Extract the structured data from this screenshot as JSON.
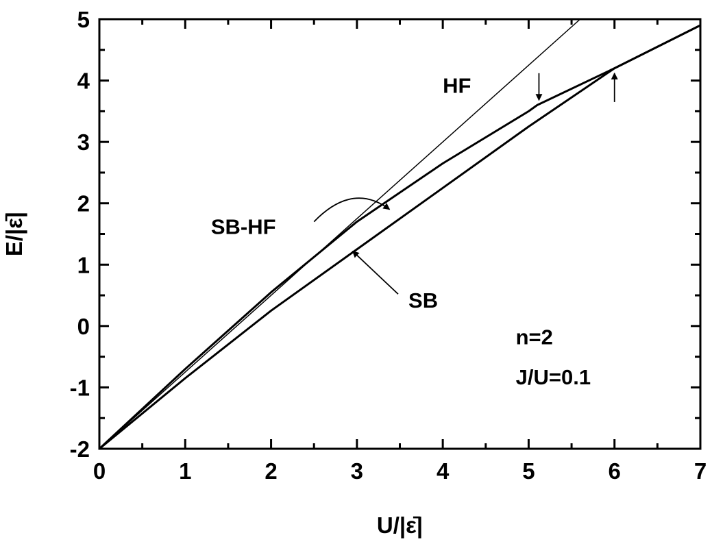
{
  "chart_data": {
    "type": "line",
    "xlabel": "U/|ε̄|",
    "ylabel": "E/|ε̄|",
    "xlim": [
      0,
      7
    ],
    "ylim": [
      -2,
      5
    ],
    "x_ticks": [
      "0",
      "1",
      "2",
      "3",
      "4",
      "5",
      "6",
      "7"
    ],
    "y_ticks": [
      "-2",
      "-1",
      "0",
      "1",
      "2",
      "3",
      "4",
      "5"
    ],
    "grid": false,
    "series": [
      {
        "name": "HF",
        "x": [
          0,
          5.6
        ],
        "y": [
          -2,
          5
        ]
      },
      {
        "name": "SB-HF",
        "x": [
          0,
          1,
          2,
          3,
          4,
          5,
          5.1,
          6,
          7
        ],
        "y": [
          -2,
          -0.7,
          0.55,
          1.7,
          2.65,
          3.5,
          3.6,
          4.2,
          4.9
        ]
      },
      {
        "name": "SB",
        "x": [
          0,
          1,
          2,
          3,
          4,
          5,
          6,
          7
        ],
        "y": [
          -2,
          -0.85,
          0.25,
          1.25,
          2.25,
          3.25,
          4.2,
          4.9
        ]
      }
    ],
    "annotations": [
      {
        "text": "HF",
        "x": 4.0,
        "y": 3.8
      },
      {
        "text": "SB-HF",
        "x": 1.3,
        "y": 1.5
      },
      {
        "text": "SB",
        "x": 3.6,
        "y": 0.3
      },
      {
        "text": "n=2",
        "x": 4.85,
        "y": -0.3
      },
      {
        "text": "J/U=0.1",
        "x": 4.85,
        "y": -0.95
      }
    ]
  }
}
